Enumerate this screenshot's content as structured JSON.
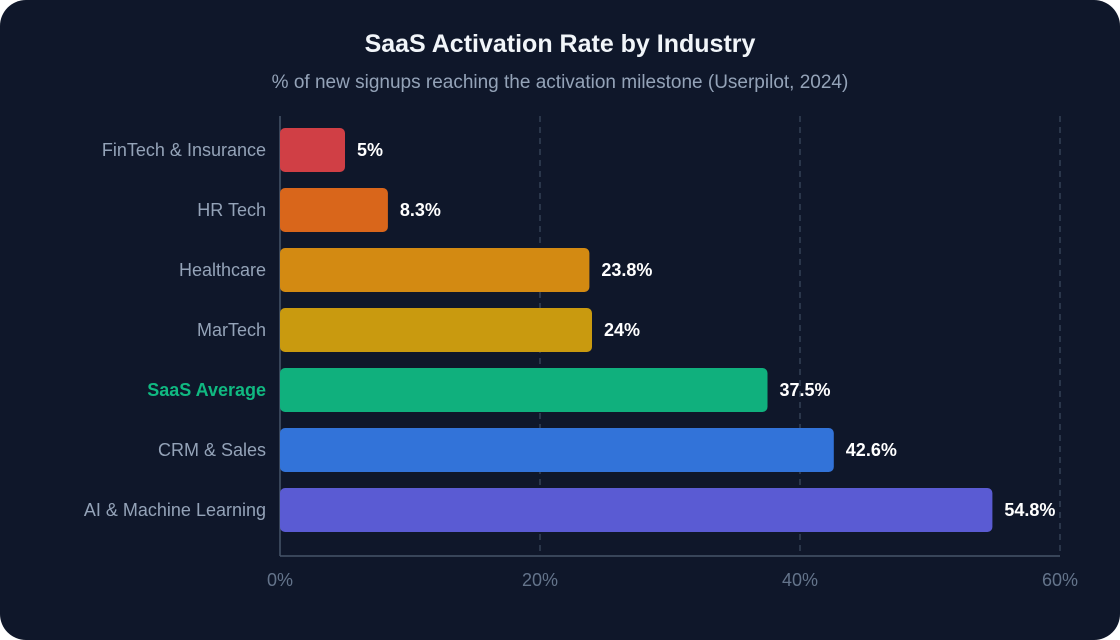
{
  "chart_data": {
    "type": "bar",
    "orientation": "horizontal",
    "title": "SaaS Activation Rate by Industry",
    "subtitle": "% of new signups reaching the activation milestone (Userpilot, 2024)",
    "xlabel": "",
    "ylabel": "",
    "xlim": [
      0,
      60
    ],
    "xticks": [
      0,
      20,
      40,
      60
    ],
    "tick_suffix": "%",
    "grid": true,
    "categories": [
      "FinTech & Insurance",
      "HR Tech",
      "Healthcare",
      "MarTech",
      "SaaS Average",
      "CRM & Sales",
      "AI & Machine Learning"
    ],
    "values": [
      5,
      8.3,
      23.8,
      24,
      37.5,
      42.6,
      54.8
    ],
    "value_labels": [
      "5%",
      "8.3%",
      "23.8%",
      "24%",
      "37.5%",
      "42.6%",
      "54.8%"
    ],
    "colors": [
      "#d03f45",
      "#d9661b",
      "#d38a12",
      "#c99a0f",
      "#10b07d",
      "#3273d9",
      "#5a5bd3"
    ],
    "highlight_category": "SaaS Average",
    "highlight_color": "#10b981"
  },
  "theme": {
    "background": "#0f172a",
    "label_color": "#94a3b8",
    "value_color": "#ffffff",
    "grid_color": "#334155",
    "axis_color": "#475569",
    "tick_color": "#64748b"
  }
}
